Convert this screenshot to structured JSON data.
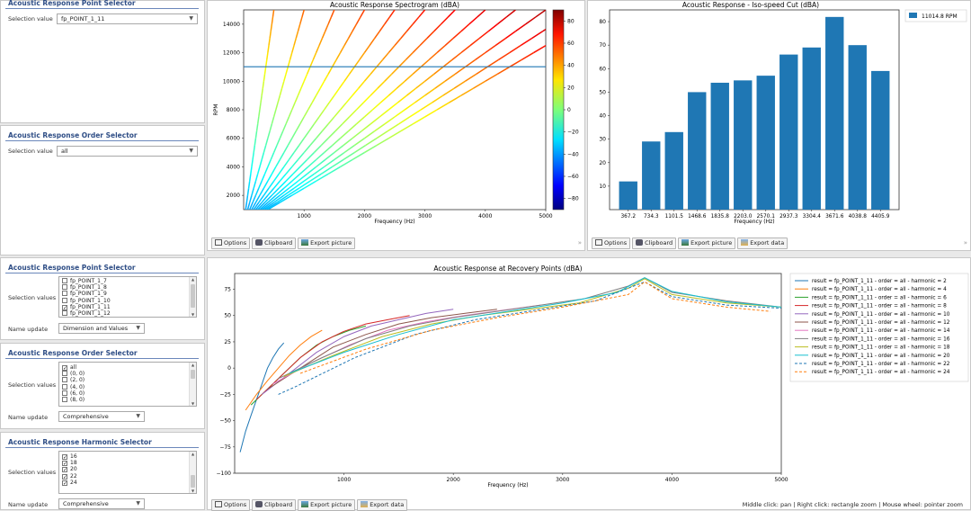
{
  "top_left": {
    "point_selector": {
      "title": "Acoustic Response Point Selector",
      "label": "Selection value",
      "value": "fp_POINT_1_11"
    },
    "order_selector": {
      "title": "Acoustic Response Order Selector",
      "label": "Selection value",
      "value": "all"
    }
  },
  "spectrogram": {
    "title": "Acoustic Response Spectrogram (dBA)",
    "xlabel": "Frequency (Hz)",
    "ylabel": "RPM",
    "xticks": [
      "1000",
      "2000",
      "3000",
      "4000",
      "5000"
    ],
    "yticks": [
      "2000",
      "4000",
      "6000",
      "8000",
      "10000",
      "12000",
      "14000"
    ],
    "colorbar_ticks": [
      "80",
      "60",
      "40",
      "20",
      "0",
      "−20",
      "−40",
      "−60",
      "−80"
    ],
    "cut_rpm": 11014.8
  },
  "isospeed": {
    "title": "Acoustic Response - Iso-speed Cut (dBA)",
    "legend": "11014.8 RPM",
    "xlabel": "Frequency (Hz)",
    "bar_color": "#1f77b4"
  },
  "toolbar_top_left": {
    "options": "Options",
    "clipboard": "Clipboard",
    "export_picture": "Export picture"
  },
  "toolbar_top_right": {
    "options": "Options",
    "clipboard": "Clipboard",
    "export_picture": "Export picture",
    "export_data": "Export data"
  },
  "bottom_left": {
    "point_selector": {
      "title": "Acoustic Response Point Selector",
      "label": "Selection values",
      "items": [
        {
          "text": "fp_POINT_1_7",
          "checked": false
        },
        {
          "text": "fp_POINT_1_8",
          "checked": false
        },
        {
          "text": "fp_POINT_1_9",
          "checked": false
        },
        {
          "text": "fp_POINT_1_10",
          "checked": false
        },
        {
          "text": "fp_POINT_1_11",
          "checked": true
        },
        {
          "text": "fp_POINT_1_12",
          "checked": false
        }
      ],
      "name_update_label": "Name update",
      "name_update_value": "Dimension and Values"
    },
    "order_selector": {
      "title": "Acoustic Response Order Selector",
      "label": "Selection values",
      "items": [
        {
          "text": "all",
          "checked": true
        },
        {
          "text": "(0, 0)",
          "checked": false
        },
        {
          "text": "(2, 0)",
          "checked": false
        },
        {
          "text": "(4, 0)",
          "checked": false
        },
        {
          "text": "(6, 0)",
          "checked": false
        },
        {
          "text": "(8, 0)",
          "checked": false
        }
      ],
      "name_update_label": "Name update",
      "name_update_value": "Comprehensive"
    },
    "harmonic_selector": {
      "title": "Acoustic Response Harmonic Selector",
      "label": "Selection values",
      "items": [
        {
          "text": "16",
          "checked": true
        },
        {
          "text": "18",
          "checked": true
        },
        {
          "text": "20",
          "checked": true
        },
        {
          "text": "22",
          "checked": true
        },
        {
          "text": "24",
          "checked": true
        }
      ],
      "name_update_label": "Name update",
      "name_update_value": "Comprehensive"
    }
  },
  "recovery": {
    "title": "Acoustic Response at Recovery Points (dBA)",
    "xlabel": "Frequency (Hz)",
    "xticks": [
      "1000",
      "2000",
      "3000",
      "4000",
      "5000"
    ],
    "yticks": [
      "75",
      "50",
      "25",
      "0",
      "−25",
      "−50",
      "−75",
      "−100"
    ],
    "legend": [
      {
        "text": "result = fp_POINT_1_11 - order = all - harmonic = 2",
        "color": "#1f77b4",
        "dashed": false
      },
      {
        "text": "result = fp_POINT_1_11 - order = all - harmonic = 4",
        "color": "#ff7f0e",
        "dashed": false
      },
      {
        "text": "result = fp_POINT_1_11 - order = all - harmonic = 6",
        "color": "#2ca02c",
        "dashed": false
      },
      {
        "text": "result = fp_POINT_1_11 - order = all - harmonic = 8",
        "color": "#d62728",
        "dashed": false
      },
      {
        "text": "result = fp_POINT_1_11 - order = all - harmonic = 10",
        "color": "#9467bd",
        "dashed": false
      },
      {
        "text": "result = fp_POINT_1_11 - order = all - harmonic = 12",
        "color": "#8c564b",
        "dashed": false
      },
      {
        "text": "result = fp_POINT_1_11 - order = all - harmonic = 14",
        "color": "#e377c2",
        "dashed": false
      },
      {
        "text": "result = fp_POINT_1_11 - order = all - harmonic = 16",
        "color": "#7f7f7f",
        "dashed": false
      },
      {
        "text": "result = fp_POINT_1_11 - order = all - harmonic = 18",
        "color": "#bcbd22",
        "dashed": false
      },
      {
        "text": "result = fp_POINT_1_11 - order = all - harmonic = 20",
        "color": "#17becf",
        "dashed": false
      },
      {
        "text": "result = fp_POINT_1_11 - order = all - harmonic = 22",
        "color": "#1f77b4",
        "dashed": true
      },
      {
        "text": "result = fp_POINT_1_11 - order = all - harmonic = 24",
        "color": "#ff7f0e",
        "dashed": true
      }
    ]
  },
  "toolbar_bottom": {
    "options": "Options",
    "clipboard": "Clipboard",
    "export_picture": "Export picture",
    "export_data": "Export data"
  },
  "status_hint": "Middle click: pan | Right click: rectangle zoom | Mouse wheel: pointer zoom",
  "chart_data": [
    {
      "type": "heatmap",
      "title": "Acoustic Response Spectrogram (dBA)",
      "xlabel": "Frequency (Hz)",
      "ylabel": "RPM",
      "xlim": [
        0,
        5000
      ],
      "ylim": [
        1000,
        15000
      ],
      "colorbar_range": [
        -90,
        90
      ],
      "order_lines": [
        2,
        4,
        6,
        8,
        10,
        12,
        14,
        16,
        18,
        20,
        22,
        24
      ],
      "cut_rpm": 11014.8
    },
    {
      "type": "bar",
      "title": "Acoustic Response - Iso-speed Cut (dBA)",
      "xlabel": "Frequency (Hz)",
      "categories": [
        "367.2",
        "734.3",
        "1101.5",
        "1468.6",
        "1835.8",
        "2203.0",
        "2570.1",
        "2937.3",
        "3304.4",
        "3671.6",
        "4038.8",
        "4405.9"
      ],
      "series": [
        {
          "name": "11014.8 RPM",
          "values": [
            12,
            29,
            33,
            50,
            54,
            55,
            57,
            66,
            69,
            82,
            70,
            59
          ]
        }
      ],
      "ylim": [
        0,
        85
      ],
      "yticks": [
        10,
        20,
        30,
        40,
        50,
        60,
        70,
        80
      ]
    },
    {
      "type": "line",
      "title": "Acoustic Response at Recovery Points (dBA)",
      "xlabel": "Frequency (Hz)",
      "xlim": [
        0,
        5000
      ],
      "ylim": [
        -100,
        90
      ],
      "series": [
        {
          "name": "result = fp_POINT_1_11 - order = all - harmonic = 2",
          "x": [
            50,
            100,
            150,
            200,
            250,
            300,
            350,
            400,
            450
          ],
          "y": [
            -80,
            -60,
            -45,
            -30,
            -15,
            0,
            10,
            18,
            24
          ]
        },
        {
          "name": "result = fp_POINT_1_11 - order = all - harmonic = 4",
          "x": [
            100,
            200,
            300,
            400,
            500,
            600,
            700,
            800
          ],
          "y": [
            -40,
            -25,
            -12,
            0,
            12,
            22,
            30,
            36
          ]
        },
        {
          "name": "result = fp_POINT_1_11 - order = all - harmonic = 6",
          "x": [
            150,
            300,
            450,
            600,
            750,
            900,
            1050,
            1200
          ],
          "y": [
            -35,
            -20,
            -5,
            10,
            22,
            30,
            36,
            40
          ]
        },
        {
          "name": "result = fp_POINT_1_11 - order = all - harmonic = 8",
          "x": [
            200,
            400,
            600,
            800,
            1000,
            1200,
            1400,
            1600
          ],
          "y": [
            -30,
            -10,
            10,
            25,
            35,
            42,
            46,
            50
          ]
        },
        {
          "name": "result = fp_POINT_1_11 - order = all - harmonic = 10",
          "x": [
            250,
            500,
            750,
            1000,
            1250,
            1500,
            1750,
            2000
          ],
          "y": [
            -25,
            -5,
            15,
            30,
            40,
            46,
            52,
            56
          ]
        },
        {
          "name": "result = fp_POINT_1_11 - order = all - harmonic = 12",
          "x": [
            300,
            600,
            900,
            1200,
            1500,
            1800,
            2100,
            2400
          ],
          "y": [
            -20,
            0,
            20,
            32,
            42,
            48,
            52,
            56
          ]
        },
        {
          "name": "result = fp_POINT_1_11 - order = all - harmonic = 14",
          "x": [
            350,
            700,
            1050,
            1400,
            1750,
            2100,
            2450,
            2800
          ],
          "y": [
            -15,
            5,
            22,
            36,
            44,
            50,
            55,
            60
          ]
        },
        {
          "name": "result = fp_POINT_1_11 - order = all - harmonic = 16",
          "x": [
            400,
            800,
            1200,
            1600,
            2000,
            2400,
            2800,
            3200,
            3600,
            3750,
            4000,
            4500,
            5000
          ],
          "y": [
            -10,
            10,
            28,
            40,
            48,
            54,
            60,
            66,
            78,
            86,
            72,
            64,
            58
          ]
        },
        {
          "name": "result = fp_POINT_1_11 - order = all - harmonic = 18",
          "x": [
            450,
            900,
            1350,
            1800,
            2250,
            2700,
            3150,
            3600,
            3750,
            4000,
            4500,
            5000
          ],
          "y": [
            -8,
            12,
            30,
            42,
            50,
            56,
            62,
            76,
            85,
            70,
            62,
            58
          ]
        },
        {
          "name": "result = fp_POINT_1_11 - order = all - harmonic = 20",
          "x": [
            500,
            1000,
            1500,
            2000,
            2500,
            3000,
            3500,
            3750,
            4000,
            4500,
            5000
          ],
          "y": [
            -5,
            15,
            32,
            46,
            54,
            62,
            72,
            86,
            73,
            63,
            58
          ]
        },
        {
          "name": "result = fp_POINT_1_11 - order = all - harmonic = 22",
          "x": [
            400,
            550,
            1100,
            1650,
            2200,
            2750,
            3300,
            3750,
            4000,
            4500,
            5000
          ],
          "y": [
            -25,
            -18,
            10,
            32,
            46,
            55,
            64,
            82,
            68,
            60,
            57
          ]
        },
        {
          "name": "result = fp_POINT_1_11 - order = all - harmonic = 24",
          "x": [
            600,
            1200,
            1800,
            2400,
            3000,
            3600,
            3750,
            4000,
            4500,
            4900
          ],
          "y": [
            -5,
            18,
            36,
            48,
            58,
            70,
            82,
            66,
            58,
            54
          ]
        }
      ]
    }
  ]
}
